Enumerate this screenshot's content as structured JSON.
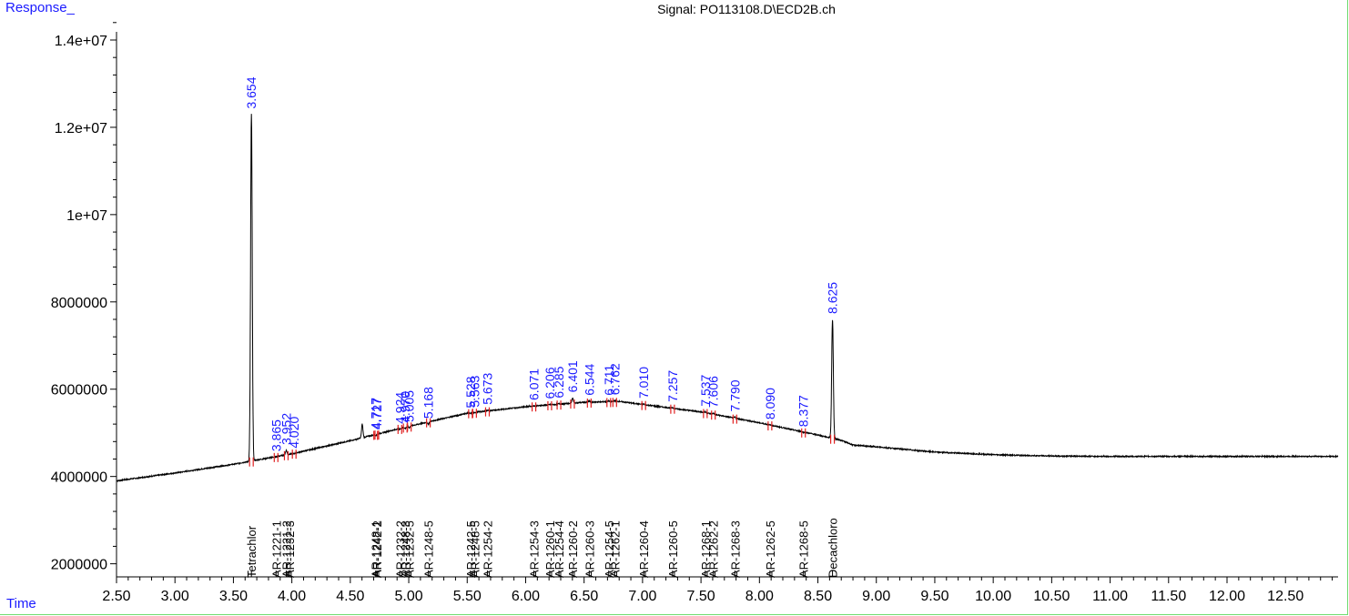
{
  "chart_data": {
    "type": "line",
    "title": "Signal: PO113108.D\\ECD2B.ch",
    "xlabel": "Time",
    "ylabel": "Response_",
    "xlim": [
      2.5,
      12.95
    ],
    "ylim": [
      1700000,
      14500000
    ],
    "x_ticks": [
      2.5,
      3.0,
      3.5,
      4.0,
      4.5,
      5.0,
      5.5,
      6.0,
      6.5,
      7.0,
      7.5,
      8.0,
      8.5,
      9.0,
      9.5,
      10.0,
      10.5,
      11.0,
      11.5,
      12.0,
      12.5
    ],
    "x_tick_labels": [
      "2.50",
      "3.00",
      "3.50",
      "4.00",
      "4.50",
      "5.00",
      "5.50",
      "6.00",
      "6.50",
      "7.00",
      "7.50",
      "8.00",
      "8.50",
      "9.00",
      "9.50",
      "10.00",
      "10.50",
      "11.00",
      "11.50",
      "12.00",
      "12.50"
    ],
    "y_ticks": [
      2000000,
      4000000,
      6000000,
      8000000,
      10000000,
      12000000,
      14000000
    ],
    "y_tick_labels": [
      "2000000",
      "4000000",
      "6000000",
      "8000000",
      "1e+07",
      "1.2e+07",
      "1.4e+07"
    ],
    "baseline": [
      [
        2.5,
        3900000
      ],
      [
        3.0,
        4080000
      ],
      [
        3.5,
        4280000
      ],
      [
        4.0,
        4520000
      ],
      [
        4.5,
        4820000
      ],
      [
        5.0,
        5150000
      ],
      [
        5.5,
        5450000
      ],
      [
        6.0,
        5600000
      ],
      [
        6.5,
        5700000
      ],
      [
        6.8,
        5720000
      ],
      [
        7.0,
        5650000
      ],
      [
        7.5,
        5480000
      ],
      [
        8.0,
        5230000
      ],
      [
        8.5,
        4950000
      ],
      [
        8.7,
        4830000
      ],
      [
        8.8,
        4720000
      ],
      [
        9.0,
        4680000
      ],
      [
        9.5,
        4560000
      ],
      [
        10.0,
        4500000
      ],
      [
        10.3,
        4480000
      ],
      [
        10.5,
        4470000
      ],
      [
        11.0,
        4460000
      ],
      [
        12.0,
        4460000
      ],
      [
        12.95,
        4460000
      ]
    ],
    "peaks": [
      {
        "time": 3.654,
        "label": "3.654",
        "height": 12300000
      },
      {
        "time": 3.865,
        "label": "3.865",
        "height": 4450000
      },
      {
        "time": 3.952,
        "label": "3.952",
        "height": 4600000
      },
      {
        "time": 4.02,
        "label": "4.020",
        "height": 4520000
      },
      {
        "time": 4.602,
        "label": "",
        "height": 5200000
      },
      {
        "time": 4.717,
        "label": "4.717",
        "height": 4950000
      },
      {
        "time": 4.727,
        "label": "4.727",
        "height": 4950000
      },
      {
        "time": 4.924,
        "label": "4.924",
        "height": 5080000
      },
      {
        "time": 4.97,
        "label": "4.970",
        "height": 5100000
      },
      {
        "time": 5.005,
        "label": "5.005",
        "height": 5120000
      },
      {
        "time": 5.168,
        "label": "5.168",
        "height": 5200000
      },
      {
        "time": 5.528,
        "label": "5.528",
        "height": 5440000
      },
      {
        "time": 5.563,
        "label": "5.563",
        "height": 5460000
      },
      {
        "time": 5.673,
        "label": "5.673",
        "height": 5520000
      },
      {
        "time": 6.071,
        "label": "6.071",
        "height": 5620000
      },
      {
        "time": 6.206,
        "label": "6.206",
        "height": 5650000
      },
      {
        "time": 6.285,
        "label": "6.285",
        "height": 5670000
      },
      {
        "time": 6.401,
        "label": "6.401",
        "height": 5800000
      },
      {
        "time": 6.544,
        "label": "6.544",
        "height": 5730000
      },
      {
        "time": 6.711,
        "label": "6.711",
        "height": 5730000
      },
      {
        "time": 6.762,
        "label": "6.762",
        "height": 5740000
      },
      {
        "time": 7.01,
        "label": "7.010",
        "height": 5660000
      },
      {
        "time": 7.257,
        "label": "7.257",
        "height": 5580000
      },
      {
        "time": 7.537,
        "label": "7.537",
        "height": 5480000
      },
      {
        "time": 7.606,
        "label": "7.606",
        "height": 5450000
      },
      {
        "time": 7.79,
        "label": "7.790",
        "height": 5360000
      },
      {
        "time": 8.09,
        "label": "8.090",
        "height": 5180000
      },
      {
        "time": 8.377,
        "label": "8.377",
        "height": 5010000
      },
      {
        "time": 8.625,
        "label": "8.625",
        "height": 7600000
      }
    ],
    "compounds": [
      {
        "time": 3.654,
        "name": "Tetrachlor"
      },
      {
        "time": 3.865,
        "name": "AR-1221-1"
      },
      {
        "time": 3.952,
        "name": "AR-1221-2"
      },
      {
        "time": 3.98,
        "name": "AR-1232-3"
      },
      {
        "time": 4.717,
        "name": "AR-1248-1"
      },
      {
        "time": 4.727,
        "name": "AR-1242-2"
      },
      {
        "time": 4.924,
        "name": "AR-1232-2"
      },
      {
        "time": 4.97,
        "name": "AR-1248-3"
      },
      {
        "time": 5.005,
        "name": "AR-1232-5"
      },
      {
        "time": 5.168,
        "name": "AR-1248-5"
      },
      {
        "time": 5.528,
        "name": "AR-1242-5"
      },
      {
        "time": 5.563,
        "name": "AR-1248-5"
      },
      {
        "time": 5.673,
        "name": "AR-1254-2"
      },
      {
        "time": 6.071,
        "name": "AR-1254-3"
      },
      {
        "time": 6.206,
        "name": "AR-1260-1"
      },
      {
        "time": 6.285,
        "name": "AR-1254-4"
      },
      {
        "time": 6.401,
        "name": "AR-1260-2"
      },
      {
        "time": 6.544,
        "name": "AR-1260-3"
      },
      {
        "time": 6.711,
        "name": "AR-1254-5"
      },
      {
        "time": 6.762,
        "name": "AR-1262-1"
      },
      {
        "time": 7.01,
        "name": "AR-1260-4"
      },
      {
        "time": 7.257,
        "name": "AR-1260-5"
      },
      {
        "time": 7.537,
        "name": "AR-1268-1"
      },
      {
        "time": 7.606,
        "name": "AR-1262-2"
      },
      {
        "time": 7.79,
        "name": "AR-1268-3"
      },
      {
        "time": 8.09,
        "name": "AR-1262-5"
      },
      {
        "time": 8.377,
        "name": "AR-1268-5"
      },
      {
        "time": 8.625,
        "name": "Decachloro"
      }
    ],
    "colors": {
      "trace": "#000000",
      "peak_labels": "#1a1aff",
      "markers": "#e02020",
      "compound_labels": "#000000",
      "frame": "#6fdc6f"
    }
  }
}
